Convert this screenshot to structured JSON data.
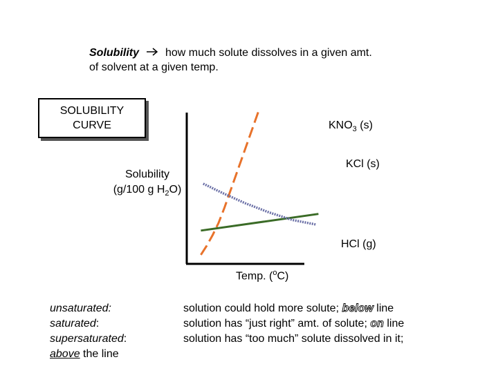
{
  "definition": {
    "term": "Solubility",
    "text_line1": "how much solute dissolves in a given amt.",
    "text_line2": "of solvent at a given temp."
  },
  "title_box": {
    "line1": "SOLUBILITY",
    "line2": "CURVE"
  },
  "chart_data": {
    "type": "line",
    "title": "SOLUBILITY CURVE",
    "xlabel": "Temp. (oC)",
    "ylabel": "Solubility (g/100 g H2O)",
    "grid": false,
    "xlim": [
      0,
      100
    ],
    "ylim": [
      0,
      100
    ],
    "series": [
      {
        "name": "KNO3 (s)",
        "color": "#e8722a",
        "style": "dashed",
        "x": [
          12,
          17,
          22,
          27,
          32,
          37,
          42,
          47,
          52,
          57,
          62
        ],
        "y": [
          6,
          12,
          19,
          27,
          37,
          48,
          59,
          70,
          81,
          92,
          103
        ]
      },
      {
        "name": "KCl (s)",
        "color": "#3a6b26",
        "style": "solid",
        "x": [
          12,
          112
        ],
        "y": [
          22,
          33
        ]
      },
      {
        "name": "HCl (g)",
        "color": "#6a6fa6",
        "style": "dotted",
        "x": [
          14,
          30,
          50,
          70,
          90,
          110
        ],
        "y": [
          53,
          47,
          40,
          34,
          29,
          26
        ]
      }
    ],
    "series_labels": {
      "kno3": {
        "main": "KNO",
        "sub": "3",
        "suffix": " (s)",
        "color": "#d0601c"
      },
      "kcl": {
        "text": "KCl (s)",
        "color": "#5a4a2a"
      },
      "hcl": {
        "text": "HCl (g)",
        "color": "#23216a"
      }
    },
    "ylabel_parts": {
      "line1": "Solubility",
      "line2_pre": "(g/100 g H",
      "line2_sub": "2",
      "line2_post": "O)"
    },
    "xlabel_parts": {
      "pre": "Temp. (",
      "sup": "o",
      "post": "C)"
    }
  },
  "key": {
    "rows": [
      {
        "term": "unsaturated:",
        "desc_pre": "solution could hold more solute; ",
        "desc_emph": "below",
        "desc_post": " line"
      },
      {
        "term": "saturated",
        "term_suffix": ":",
        "desc_pre": "solution has “just right” amt. of solute; ",
        "desc_emph": "on",
        "desc_post": " line"
      },
      {
        "term": "supersaturated",
        "term_suffix": ":",
        "desc_pre": "solution has “too much” solute dissolved in it;",
        "desc_emph": "",
        "desc_post": ""
      }
    ],
    "extra": {
      "emph": "above",
      "rest": " the line"
    }
  }
}
